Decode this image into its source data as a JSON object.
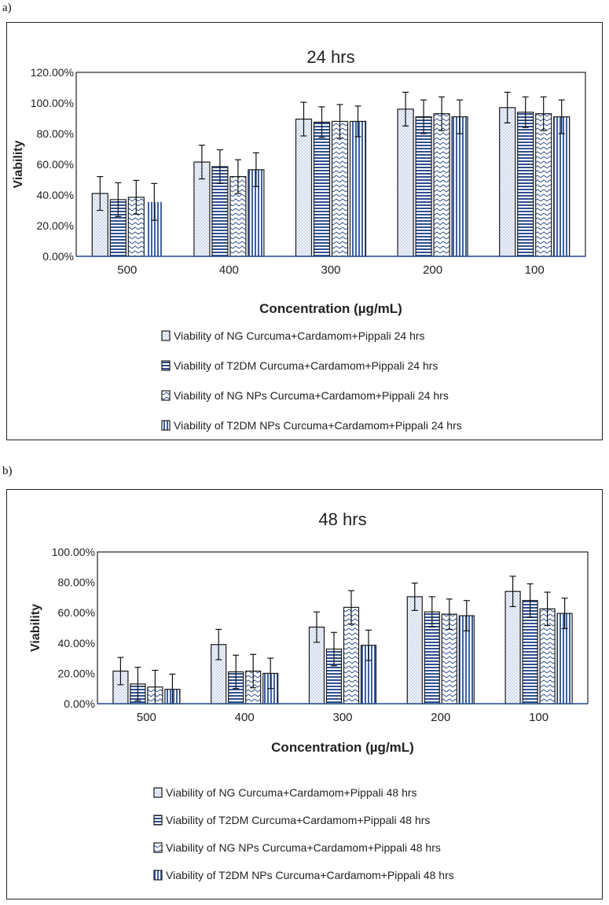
{
  "panel_labels": [
    "a)",
    "b)"
  ],
  "chart_data": [
    {
      "type": "bar",
      "title": "24 hrs",
      "xlabel": "Concentration (µg/mL)",
      "ylabel": "Viability",
      "ylim": [
        0,
        1.2
      ],
      "yticks": [
        "0.00%",
        "20.00%",
        "40.00%",
        "60.00%",
        "80.00%",
        "100.00%",
        "120.00%"
      ],
      "categories": [
        "500",
        "400",
        "300",
        "200",
        "100"
      ],
      "legend_position": "bottom",
      "series": [
        {
          "name": "Viability of NG Curcuma+Cardamom+Pippali 24 hrs",
          "pattern": "dots",
          "values": [
            0.41,
            0.615,
            0.895,
            0.96,
            0.97
          ],
          "errors": [
            0.11,
            0.11,
            0.11,
            0.11,
            0.1
          ]
        },
        {
          "name": "Viability of T2DM Curcuma+Cardamom+Pippali 24 hrs",
          "pattern": "hlines",
          "values": [
            0.37,
            0.585,
            0.875,
            0.91,
            0.94
          ],
          "errors": [
            0.11,
            0.11,
            0.1,
            0.11,
            0.1
          ]
        },
        {
          "name": "Viability of NG NPs Curcuma+Cardamom+Pippali 24 hrs",
          "pattern": "zigzag",
          "values": [
            0.385,
            0.52,
            0.88,
            0.93,
            0.93
          ],
          "errors": [
            0.11,
            0.11,
            0.11,
            0.11,
            0.11
          ]
        },
        {
          "name": "Viability of T2DM NPs Curcuma+Cardamom+Pippali 24 hrs",
          "pattern": "vlines",
          "values": [
            0.355,
            0.565,
            0.88,
            0.91,
            0.91
          ],
          "errors": [
            0.12,
            0.11,
            0.1,
            0.11,
            0.11
          ]
        }
      ]
    },
    {
      "type": "bar",
      "title": "48 hrs",
      "xlabel": "Concentration (µg/mL)",
      "ylabel": "Viability",
      "ylim": [
        0,
        1.0
      ],
      "yticks": [
        "0.00%",
        "20.00%",
        "40.00%",
        "60.00%",
        "80.00%",
        "100.00%"
      ],
      "categories": [
        "500",
        "400",
        "300",
        "200",
        "100"
      ],
      "legend_position": "bottom",
      "series": [
        {
          "name": "Viability of NG Curcuma+Cardamom+Pippali 48 hrs",
          "pattern": "dots",
          "values": [
            0.215,
            0.39,
            0.505,
            0.705,
            0.74
          ],
          "errors": [
            0.09,
            0.1,
            0.1,
            0.09,
            0.1
          ]
        },
        {
          "name": "Viability of T2DM Curcuma+Cardamom+Pippali 48 hrs",
          "pattern": "hlines",
          "values": [
            0.13,
            0.21,
            0.36,
            0.605,
            0.68
          ],
          "errors": [
            0.11,
            0.11,
            0.11,
            0.1,
            0.11
          ]
        },
        {
          "name": "Viability of NG NPs Curcuma+Cardamom+Pippali 48 hrs",
          "pattern": "zigzag",
          "values": [
            0.11,
            0.215,
            0.635,
            0.59,
            0.625
          ],
          "errors": [
            0.11,
            0.11,
            0.11,
            0.1,
            0.11
          ]
        },
        {
          "name": "Viability of T2DM NPs Curcuma+Cardamom+Pippali 48 hrs",
          "pattern": "vlines",
          "values": [
            0.095,
            0.2,
            0.385,
            0.58,
            0.595
          ],
          "errors": [
            0.1,
            0.1,
            0.1,
            0.1,
            0.1
          ]
        }
      ]
    }
  ]
}
